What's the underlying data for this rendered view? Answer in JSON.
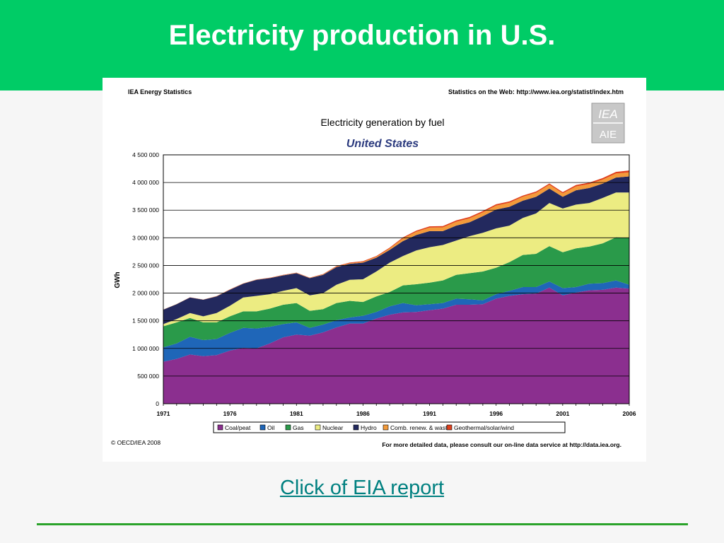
{
  "slide": {
    "title": "Electricity production in U.S.",
    "link_label": "Click of EIA report",
    "header_color": "#00cc66"
  },
  "chart_panel": {
    "source_left": "IEA Energy Statistics",
    "source_right": "Statistics on the Web: http://www.iea.org/statist/index.htm",
    "copyright": "© OECD/IEA 2008",
    "footnote": "For more detailed data, please consult our on-line data service at http://data.iea.org.",
    "logo_text": "IEA"
  },
  "chart_data": {
    "type": "area",
    "stacked": true,
    "title": "Electricity generation by fuel",
    "subtitle": "United States",
    "xlabel": "",
    "ylabel": "GWh",
    "x": [
      1971,
      1972,
      1973,
      1974,
      1975,
      1976,
      1977,
      1978,
      1979,
      1980,
      1981,
      1982,
      1983,
      1984,
      1985,
      1986,
      1987,
      1988,
      1989,
      1990,
      1991,
      1992,
      1993,
      1994,
      1995,
      1996,
      1997,
      1998,
      1999,
      2000,
      2001,
      2002,
      2003,
      2004,
      2005,
      2006
    ],
    "x_ticks": [
      "1971",
      "1976",
      "1981",
      "1986",
      "1991",
      "1996",
      "2001",
      "2006"
    ],
    "x_tick_values": [
      1971,
      1976,
      1981,
      1986,
      1991,
      1996,
      2001,
      2006
    ],
    "ylim": [
      0,
      4500000
    ],
    "y_ticks": [
      "0",
      "500 000",
      "1 000 000",
      "1 500 000",
      "2 000 000",
      "2 500 000",
      "3 000 000",
      "3 500 000",
      "4 000 000",
      "4 500 000"
    ],
    "y_tick_values": [
      0,
      500000,
      1000000,
      1500000,
      2000000,
      2500000,
      3000000,
      3500000,
      4000000,
      4500000
    ],
    "grid": "horizontal",
    "legend_position": "bottom",
    "series": [
      {
        "name": "Coal/peat",
        "color": "#8b2f8f",
        "values": [
          760000,
          810000,
          890000,
          860000,
          880000,
          960000,
          1010000,
          1000000,
          1090000,
          1200000,
          1250000,
          1230000,
          1290000,
          1380000,
          1450000,
          1450000,
          1540000,
          1610000,
          1650000,
          1660000,
          1690000,
          1720000,
          1790000,
          1790000,
          1800000,
          1900000,
          1950000,
          1980000,
          1990000,
          2100000,
          1960000,
          2010000,
          2050000,
          2060000,
          2100000,
          2080000
        ]
      },
      {
        "name": "Oil",
        "color": "#1f66b8",
        "values": [
          260000,
          280000,
          320000,
          290000,
          290000,
          320000,
          360000,
          360000,
          300000,
          240000,
          220000,
          140000,
          140000,
          130000,
          110000,
          140000,
          120000,
          150000,
          170000,
          120000,
          110000,
          100000,
          110000,
          100000,
          70000,
          80000,
          90000,
          130000,
          120000,
          110000,
          130000,
          100000,
          120000,
          120000,
          130000,
          70000
        ]
      },
      {
        "name": "Gas",
        "color": "#2a9a4a",
        "values": [
          380000,
          380000,
          340000,
          320000,
          300000,
          300000,
          300000,
          310000,
          330000,
          350000,
          350000,
          310000,
          280000,
          310000,
          300000,
          250000,
          280000,
          260000,
          320000,
          380000,
          390000,
          410000,
          430000,
          470000,
          520000,
          480000,
          520000,
          580000,
          600000,
          640000,
          650000,
          700000,
          670000,
          720000,
          780000,
          850000
        ]
      },
      {
        "name": "Nuclear",
        "color": "#ecec82",
        "values": [
          40000,
          60000,
          90000,
          110000,
          170000,
          190000,
          250000,
          280000,
          260000,
          250000,
          270000,
          280000,
          290000,
          330000,
          380000,
          410000,
          450000,
          530000,
          530000,
          610000,
          640000,
          640000,
          620000,
          670000,
          700000,
          710000,
          660000,
          670000,
          730000,
          780000,
          790000,
          790000,
          790000,
          820000,
          810000,
          820000
        ]
      },
      {
        "name": "Hydro",
        "color": "#23295e",
        "values": [
          260000,
          270000,
          280000,
          300000,
          300000,
          290000,
          250000,
          290000,
          290000,
          280000,
          270000,
          310000,
          330000,
          320000,
          290000,
          300000,
          250000,
          230000,
          270000,
          280000,
          290000,
          250000,
          270000,
          250000,
          300000,
          340000,
          340000,
          310000,
          300000,
          260000,
          210000,
          260000,
          270000,
          260000,
          270000,
          290000
        ]
      },
      {
        "name": "Comb. renew. & waste",
        "color": "#f39a3a",
        "values": [
          2000,
          2000,
          2000,
          2000,
          3000,
          3000,
          3000,
          4000,
          4000,
          5000,
          5000,
          6000,
          8000,
          10000,
          12000,
          15000,
          18000,
          28000,
          50000,
          60000,
          65000,
          70000,
          70000,
          72000,
          70000,
          72000,
          75000,
          72000,
          75000,
          70000,
          65000,
          70000,
          72000,
          72000,
          72000,
          73000
        ]
      },
      {
        "name": "Geothermal/solar/wind",
        "color": "#e0401c",
        "values": [
          500,
          1000,
          2000,
          3000,
          3000,
          4000,
          3000,
          3000,
          4000,
          5000,
          5000,
          5000,
          7000,
          9000,
          10000,
          12000,
          13000,
          13000,
          18000,
          20000,
          22000,
          23000,
          24000,
          24000,
          24000,
          24000,
          23000,
          22000,
          22000,
          22000,
          20000,
          25000,
          26000,
          27000,
          30000,
          34000
        ]
      }
    ]
  }
}
